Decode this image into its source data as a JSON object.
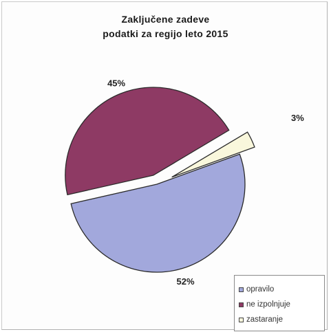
{
  "chart_data": {
    "type": "pie",
    "title": [
      "Zaključene zadeve",
      "podatki za regijo leto 2015"
    ],
    "slices": [
      {
        "name": "opravilo",
        "value": 52,
        "label": "52%",
        "color": "#a2a8dc"
      },
      {
        "name": "ne izpolnjuje",
        "value": 45,
        "label": "45%",
        "color": "#8e3a64"
      },
      {
        "name": "zastaranje",
        "value": 3,
        "label": "3%",
        "color": "#f9f7dc"
      }
    ],
    "exploded": [
      "ne izpolnjuje",
      "zastaranje"
    ],
    "legend_position": "bottom-right"
  }
}
